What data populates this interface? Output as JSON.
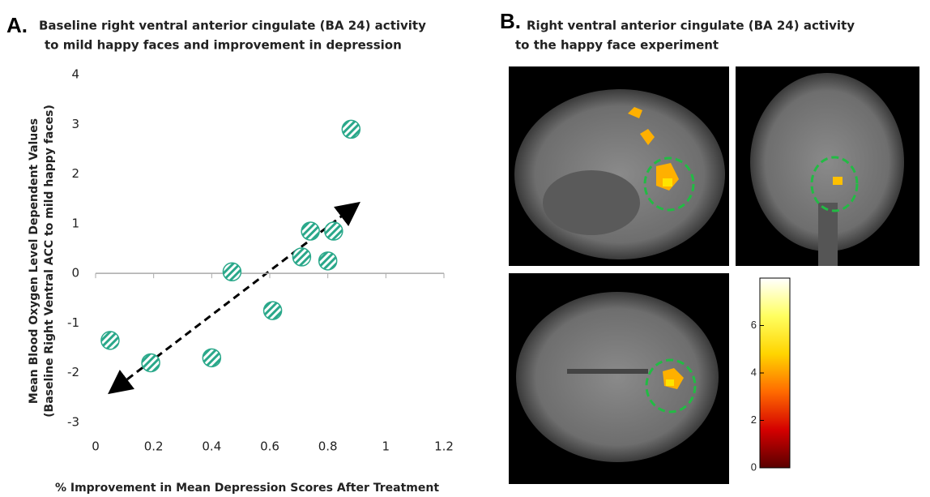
{
  "chart_data": [
    {
      "type": "scatter",
      "panel": "A.",
      "title": [
        "Baseline right ventral anterior cingulate (BA 24) activity",
        "to mild happy faces and improvement in depression"
      ],
      "ylabel": [
        "Mean Blood Oxygen Level Dependent Values",
        "(Baseline Right Ventral ACC to mild happy faces)"
      ],
      "xlabel": "% Improvement in Mean Depression Scores After Treatment",
      "x": [
        0.05,
        0.19,
        0.4,
        0.47,
        0.61,
        0.71,
        0.74,
        0.8,
        0.82,
        0.88
      ],
      "values": [
        -1.35,
        -1.8,
        -1.7,
        0.03,
        -0.75,
        0.33,
        0.85,
        0.25,
        0.85,
        2.9
      ],
      "color": "#2aa88a",
      "xlim": [
        0,
        1.2
      ],
      "xticks": [
        0,
        0.2,
        0.4,
        0.6,
        0.8,
        1,
        1.2
      ],
      "ylim": [
        -3,
        4
      ],
      "yticks": [
        -3,
        -2,
        -1,
        0,
        1,
        2,
        3,
        4
      ]
    },
    {
      "type": "colorbar",
      "panel": "B.",
      "title": [
        "Right ventral anterior cingulate (BA 24) activity",
        "to the happy face experiment"
      ],
      "colors": [
        "#5a0000",
        "#d40000",
        "#ff6a00",
        "#ffd400",
        "#ffff60",
        "#ffffff"
      ],
      "ylim": [
        0,
        8
      ],
      "yticks": [
        0,
        2,
        4,
        6
      ]
    }
  ]
}
